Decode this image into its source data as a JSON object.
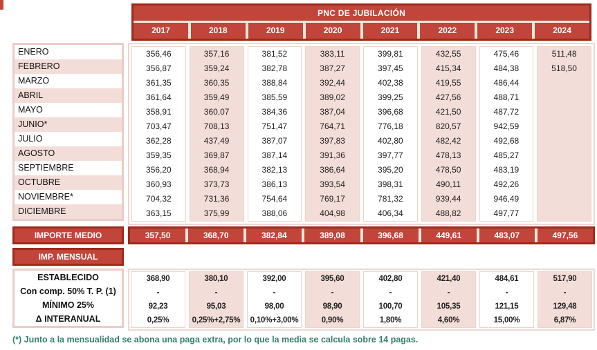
{
  "table": {
    "title": "PNC DE JUBILACIÓN",
    "years": [
      "2017",
      "2018",
      "2019",
      "2020",
      "2021",
      "2022",
      "2023",
      "2024"
    ],
    "months": [
      {
        "label": "ENERO",
        "values": [
          "356,46",
          "357,16",
          "381,52",
          "383,11",
          "399,81",
          "432,55",
          "475,46",
          "511,48"
        ]
      },
      {
        "label": "FEBRERO",
        "values": [
          "356,87",
          "359,24",
          "382,78",
          "387,27",
          "397,45",
          "415,34",
          "484,38",
          "518,50"
        ]
      },
      {
        "label": "MARZO",
        "values": [
          "361,35",
          "360,35",
          "388,84",
          "392,44",
          "402,38",
          "419,55",
          "486,44",
          ""
        ]
      },
      {
        "label": "ABRIL",
        "values": [
          "361,64",
          "359,49",
          "385,59",
          "389,02",
          "399,25",
          "427,56",
          "488,71",
          ""
        ]
      },
      {
        "label": "MAYO",
        "values": [
          "358,91",
          "360,07",
          "384,36",
          "387,04",
          "396,68",
          "421,50",
          "487,72",
          ""
        ]
      },
      {
        "label": "JUNIO*",
        "values": [
          "703,47",
          "708,13",
          "751,47",
          "764,71",
          "776,18",
          "820,57",
          "942,59",
          ""
        ]
      },
      {
        "label": "JULIO",
        "values": [
          "362,28",
          "437,49",
          "387,07",
          "397,83",
          "402,80",
          "482,42",
          "492,68",
          ""
        ]
      },
      {
        "label": "AGOSTO",
        "values": [
          "359,35",
          "369,87",
          "387,14",
          "391,36",
          "397,77",
          "478,13",
          "485,27",
          ""
        ]
      },
      {
        "label": "SEPTIEMBRE",
        "values": [
          "356,20",
          "368,94",
          "382,13",
          "386,64",
          "395,20",
          "478,50",
          "483,19",
          ""
        ]
      },
      {
        "label": "OCTUBRE",
        "values": [
          "360,93",
          "373,73",
          "386,13",
          "393,54",
          "398,31",
          "490,11",
          "492,26",
          ""
        ]
      },
      {
        "label": "NOVIEMBRE*",
        "values": [
          "704,32",
          "731,36",
          "754,64",
          "769,17",
          "781,32",
          "939,44",
          "946,49",
          ""
        ]
      },
      {
        "label": "DICIEMBRE",
        "values": [
          "363,15",
          "375,99",
          "388,06",
          "404,98",
          "406,34",
          "488,82",
          "497,77",
          ""
        ]
      }
    ],
    "importe_medio": {
      "label": "IMPORTE MEDIO",
      "values": [
        "357,50",
        "368,70",
        "382,84",
        "389,08",
        "396,68",
        "449,61",
        "483,07",
        "497,56"
      ]
    },
    "imp_mensual_label": "IMP. MENSUAL",
    "monthly_rows": [
      {
        "label": "ESTABLECIDO",
        "values": [
          "368,90",
          "380,10",
          "392,00",
          "395,60",
          "402,80",
          "421,40",
          "484,61",
          "517,90"
        ]
      },
      {
        "label": "Con comp. 50% T. P. (1)",
        "values": [
          "-",
          "-",
          "-",
          "-",
          "-",
          "-",
          "-",
          "-"
        ]
      },
      {
        "label": "MÍNIMO 25%",
        "values": [
          "92,23",
          "95,03",
          "98,00",
          "98,90",
          "100,70",
          "105,35",
          "121,15",
          "129,48"
        ]
      },
      {
        "label": "Δ INTERANUAL",
        "values": [
          "0,25%",
          "0,25%+2,75%",
          "0,10%+3,00%",
          "0,90%",
          "1,80%",
          "4,60%",
          "15,00%",
          "6,87%"
        ]
      }
    ],
    "footnote": "(*) Junto a la mensualidad se abona una paga extra, por lo que la media se calcula sobre 14 pagas."
  },
  "colors": {
    "red_fill": "#C1453A",
    "dark_red_border": "#9E2A1B",
    "cream_separator": "#F2E8DB",
    "pink_fill": "#F3DDD9",
    "pink_border": "#E9CCC6",
    "footnote_green": "#35806B"
  }
}
